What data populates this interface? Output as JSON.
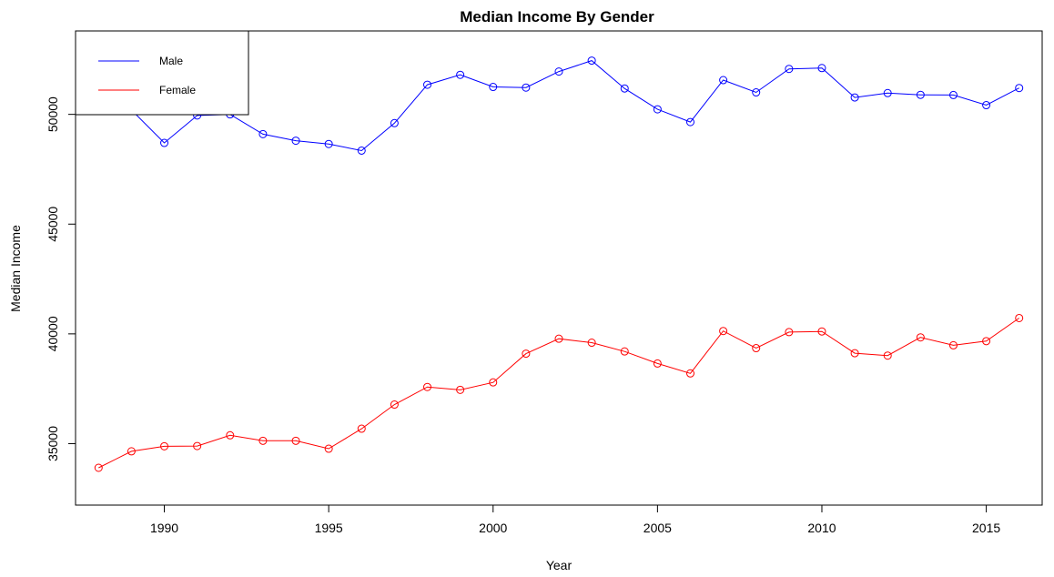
{
  "chart_data": {
    "type": "line",
    "title": "Median Income By Gender",
    "xlabel": "Year",
    "ylabel": "Median Income",
    "xlim": [
      1987.3,
      1916.7
    ],
    "ylim": [
      32200,
      53800
    ],
    "xticks": [
      1990,
      1995,
      2000,
      2005,
      2010,
      2015
    ],
    "yticks": [
      35000,
      40000,
      45000,
      50000
    ],
    "grid": false,
    "legend_position": "top-left",
    "x": [
      1988,
      1989,
      1990,
      1991,
      1992,
      1993,
      1994,
      1995,
      1996,
      1997,
      1998,
      1999,
      2000,
      2001,
      2002,
      2003,
      2004,
      2005,
      2006,
      2007,
      2008,
      2009,
      2010,
      2011,
      2012,
      2013,
      2014,
      2015,
      2016
    ],
    "series": [
      {
        "name": "Male",
        "color": "#0000ff",
        "values": [
          50300,
          50200,
          48700,
          49950,
          50000,
          49100,
          48800,
          48650,
          48350,
          49600,
          51350,
          51800,
          51250,
          51220,
          51950,
          52450,
          51180,
          50230,
          49650,
          51560,
          51000,
          52070,
          52110,
          50770,
          50970,
          50890,
          50880,
          50420,
          51200
        ]
      },
      {
        "name": "Female",
        "color": "#ff0000",
        "values": [
          33900,
          34650,
          34880,
          34890,
          35380,
          35130,
          35130,
          34770,
          35680,
          36780,
          37580,
          37450,
          37790,
          39100,
          39780,
          39600,
          39200,
          38650,
          38200,
          40130,
          39350,
          40080,
          40110,
          39120,
          39010,
          39840,
          39480,
          39670,
          40720
        ]
      }
    ]
  }
}
